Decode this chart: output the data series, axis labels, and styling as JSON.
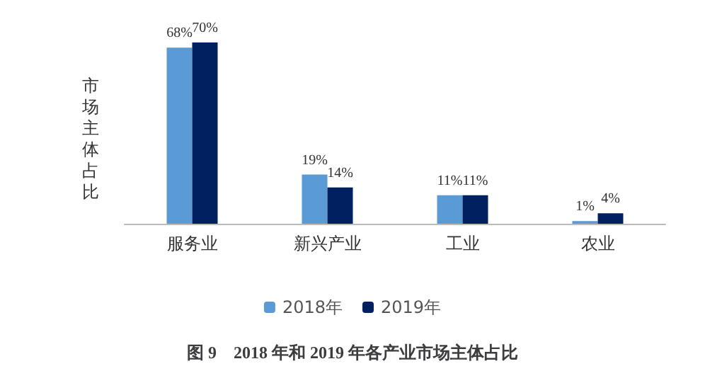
{
  "chart_data": {
    "type": "bar",
    "title": "图 9　2018 年和 2019 年各产业市场主体占比",
    "ylabel": "市场主体占比",
    "categories": [
      "服务业",
      "新兴产业",
      "工业",
      "农业"
    ],
    "series": [
      {
        "name": "2018年",
        "color": "#5b9bd5",
        "values": [
          68,
          19,
          11,
          1
        ],
        "value_labels": [
          "68%",
          "19%",
          "11%",
          "1%"
        ]
      },
      {
        "name": "2019年",
        "color": "#002060",
        "values": [
          70,
          14,
          11,
          4
        ],
        "value_labels": [
          "70%",
          "14%",
          "11%",
          "4%"
        ]
      }
    ],
    "legend": "bottom",
    "grid": false
  }
}
